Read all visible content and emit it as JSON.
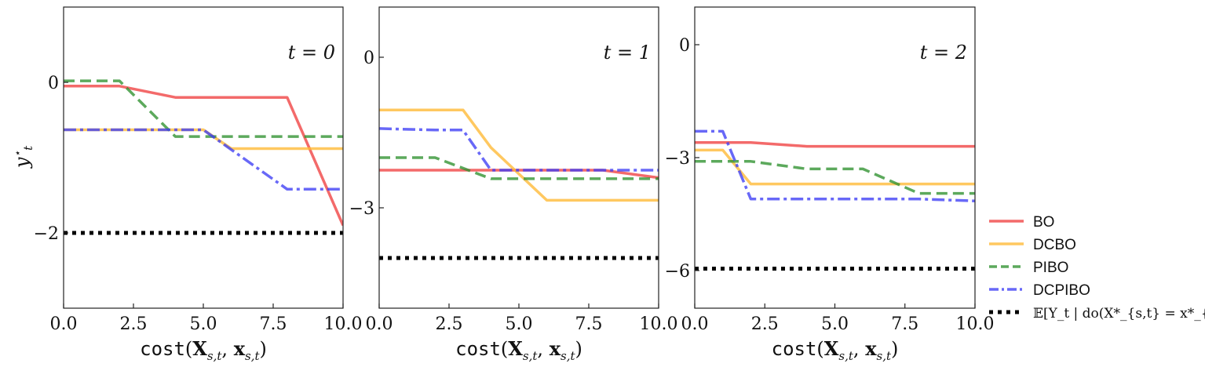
{
  "ylabel": "y*_t",
  "legend": {
    "placement": "right",
    "items": [
      {
        "label": "BO",
        "color": "#f04040",
        "dash": "solid"
      },
      {
        "label": "DCBO",
        "color": "#ffb833",
        "dash": "solid"
      },
      {
        "label": "PIBO",
        "color": "#2e912e",
        "dash": "dashed"
      },
      {
        "label": "DCPIBO",
        "color": "#3d3df5",
        "dash": "dashdot"
      },
      {
        "label": "𝔼[Y_t | do(X*_{s,t} = x*_{s,t})]",
        "color": "#000000",
        "dash": "dotted"
      }
    ]
  },
  "chart_data": [
    {
      "type": "line",
      "annotation": "t = 0",
      "xlabel": "cost(X_{s,t}, x_{s,t})",
      "xlim": [
        0,
        10
      ],
      "ylim": [
        -3,
        1
      ],
      "xticks": [
        "0.0",
        "2.5",
        "5.0",
        "7.5",
        "10.0"
      ],
      "xtick_values": [
        0,
        2.5,
        5,
        7.5,
        10
      ],
      "yticks": [
        "0",
        "−2"
      ],
      "ytick_values": [
        0,
        -2
      ],
      "series": [
        {
          "name": "BO",
          "x": [
            0,
            2,
            4,
            6,
            8,
            10
          ],
          "y": [
            -0.05,
            -0.05,
            -0.2,
            -0.2,
            -0.2,
            -1.9
          ]
        },
        {
          "name": "DCBO",
          "x": [
            0,
            2,
            4,
            5,
            6,
            8,
            10
          ],
          "y": [
            -0.63,
            -0.63,
            -0.63,
            -0.63,
            -0.88,
            -0.88,
            -0.88
          ]
        },
        {
          "name": "PIBO",
          "x": [
            0,
            2,
            4,
            6,
            8,
            10
          ],
          "y": [
            0.02,
            0.02,
            -0.72,
            -0.72,
            -0.72,
            -0.72
          ]
        },
        {
          "name": "DCPIBO",
          "x": [
            0,
            2,
            4,
            5,
            8,
            10
          ],
          "y": [
            -0.63,
            -0.63,
            -0.63,
            -0.63,
            -1.42,
            -1.42
          ]
        },
        {
          "name": "𝔼[Y_t | do(X*_{s,t} = x*_{s,t})]",
          "x": [
            0,
            10
          ],
          "y": [
            -2.0,
            -2.0
          ]
        }
      ]
    },
    {
      "type": "line",
      "annotation": "t = 1",
      "xlabel": "cost(X_{s,t}, x_{s,t})",
      "xlim": [
        0,
        10
      ],
      "ylim": [
        -5,
        1
      ],
      "xticks": [
        "0.0",
        "2.5",
        "5.0",
        "7.5",
        "10.0"
      ],
      "xtick_values": [
        0,
        2.5,
        5,
        7.5,
        10
      ],
      "yticks": [
        "0",
        "−3"
      ],
      "ytick_values": [
        0,
        -3
      ],
      "series": [
        {
          "name": "BO",
          "x": [
            0,
            2,
            4,
            6,
            8,
            10
          ],
          "y": [
            -2.25,
            -2.25,
            -2.25,
            -2.25,
            -2.25,
            -2.4
          ]
        },
        {
          "name": "DCBO",
          "x": [
            0,
            2,
            3,
            4,
            6,
            8,
            10
          ],
          "y": [
            -1.05,
            -1.05,
            -1.05,
            -1.8,
            -2.85,
            -2.85,
            -2.85
          ]
        },
        {
          "name": "PIBO",
          "x": [
            0,
            2,
            4,
            6,
            8,
            10
          ],
          "y": [
            -2.0,
            -2.0,
            -2.42,
            -2.42,
            -2.42,
            -2.42
          ]
        },
        {
          "name": "DCPIBO",
          "x": [
            0,
            2,
            3,
            4,
            6,
            8,
            10
          ],
          "y": [
            -1.42,
            -1.45,
            -1.45,
            -2.25,
            -2.25,
            -2.25,
            -2.25
          ]
        },
        {
          "name": "𝔼[Y_t | do(X*_{s,t} = x*_{s,t})]",
          "x": [
            0,
            10
          ],
          "y": [
            -4.0,
            -4.0
          ]
        }
      ]
    },
    {
      "type": "line",
      "annotation": "t = 2",
      "xlabel": "cost(X_{s,t}, x_{s,t})",
      "xlim": [
        0,
        10
      ],
      "ylim": [
        -7,
        1
      ],
      "xticks": [
        "0.0",
        "2.5",
        "5.0",
        "7.5",
        "10.0"
      ],
      "xtick_values": [
        0,
        2.5,
        5,
        7.5,
        10
      ],
      "yticks": [
        "0",
        "−3",
        "−6"
      ],
      "ytick_values": [
        0,
        -3,
        -6
      ],
      "series": [
        {
          "name": "BO",
          "x": [
            0,
            2,
            4,
            6,
            8,
            10
          ],
          "y": [
            -2.6,
            -2.6,
            -2.7,
            -2.7,
            -2.7,
            -2.7
          ]
        },
        {
          "name": "DCBO",
          "x": [
            0,
            1,
            2,
            4,
            6,
            8,
            10
          ],
          "y": [
            -2.8,
            -2.8,
            -3.7,
            -3.7,
            -3.7,
            -3.7,
            -3.7
          ]
        },
        {
          "name": "PIBO",
          "x": [
            0,
            2,
            4,
            6,
            8,
            10
          ],
          "y": [
            -3.1,
            -3.1,
            -3.3,
            -3.3,
            -3.95,
            -3.95
          ]
        },
        {
          "name": "DCPIBO",
          "x": [
            0,
            1,
            2,
            4,
            6,
            8,
            10
          ],
          "y": [
            -2.3,
            -2.3,
            -4.1,
            -4.1,
            -4.1,
            -4.1,
            -4.15
          ]
        },
        {
          "name": "𝔼[Y_t | do(X*_{s,t} = x*_{s,t})]",
          "x": [
            0,
            10
          ],
          "y": [
            -5.95,
            -5.95
          ]
        }
      ]
    }
  ]
}
